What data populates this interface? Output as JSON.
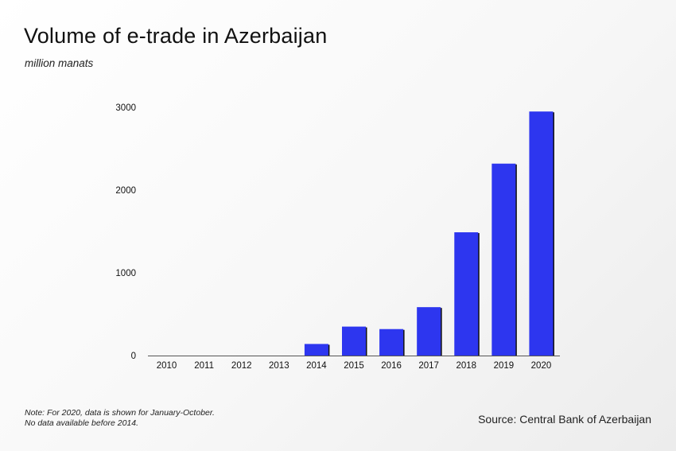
{
  "header": {
    "title": "Volume of e-trade in Azerbaijan",
    "subtitle": "million manats"
  },
  "footer": {
    "note_line1": "Note: For 2020, data is shown for January-October.",
    "note_line2": "No data available before 2014.",
    "source": "Source: Central Bank of Azerbaijan"
  },
  "colors": {
    "bar": "#2d36ef",
    "bar_shadow": "#111111",
    "axis": "#555555"
  },
  "chart_data": {
    "type": "bar",
    "title": "Volume of e-trade in Azerbaijan",
    "ylabel": "million manats",
    "xlabel": "",
    "categories": [
      "2010",
      "2011",
      "2012",
      "2013",
      "2014",
      "2015",
      "2016",
      "2017",
      "2018",
      "2019",
      "2020"
    ],
    "values": [
      null,
      null,
      null,
      null,
      140,
      350,
      320,
      585,
      1490,
      2320,
      2950
    ],
    "ylim": [
      0,
      3000
    ],
    "yticks": [
      "0",
      "1000",
      "2000",
      "3000"
    ],
    "grid": false,
    "legend": "none"
  }
}
